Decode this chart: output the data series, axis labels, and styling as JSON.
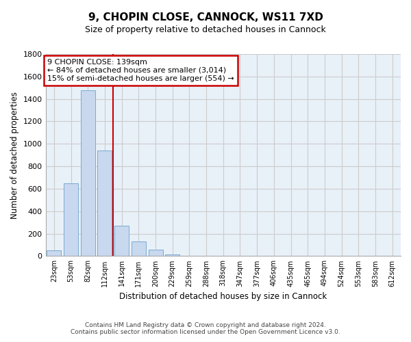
{
  "title": "9, CHOPIN CLOSE, CANNOCK, WS11 7XD",
  "subtitle": "Size of property relative to detached houses in Cannock",
  "xlabel": "Distribution of detached houses by size in Cannock",
  "ylabel": "Number of detached properties",
  "categories": [
    "23sqm",
    "53sqm",
    "82sqm",
    "112sqm",
    "141sqm",
    "171sqm",
    "200sqm",
    "229sqm",
    "259sqm",
    "288sqm",
    "318sqm",
    "347sqm",
    "377sqm",
    "406sqm",
    "435sqm",
    "465sqm",
    "494sqm",
    "524sqm",
    "553sqm",
    "583sqm",
    "612sqm"
  ],
  "values": [
    50,
    650,
    1480,
    940,
    270,
    130,
    60,
    15,
    5,
    1,
    1,
    0,
    1,
    0,
    0,
    0,
    0,
    0,
    0,
    0,
    0
  ],
  "bar_color": "#c8d8ee",
  "bar_edge_color": "#7aabd0",
  "red_line_x": 3.5,
  "annotation_text": "9 CHOPIN CLOSE: 139sqm\n← 84% of detached houses are smaller (3,014)\n15% of semi-detached houses are larger (554) →",
  "annotation_box_color": "#ffffff",
  "annotation_box_edge_color": "#cc0000",
  "red_line_color": "#cc0000",
  "ylim": [
    0,
    1800
  ],
  "yticks": [
    0,
    200,
    400,
    600,
    800,
    1000,
    1200,
    1400,
    1600,
    1800
  ],
  "footer_line1": "Contains HM Land Registry data © Crown copyright and database right 2024.",
  "footer_line2": "Contains public sector information licensed under the Open Government Licence v3.0.",
  "background_color": "#ffffff",
  "grid_color": "#cccccc"
}
